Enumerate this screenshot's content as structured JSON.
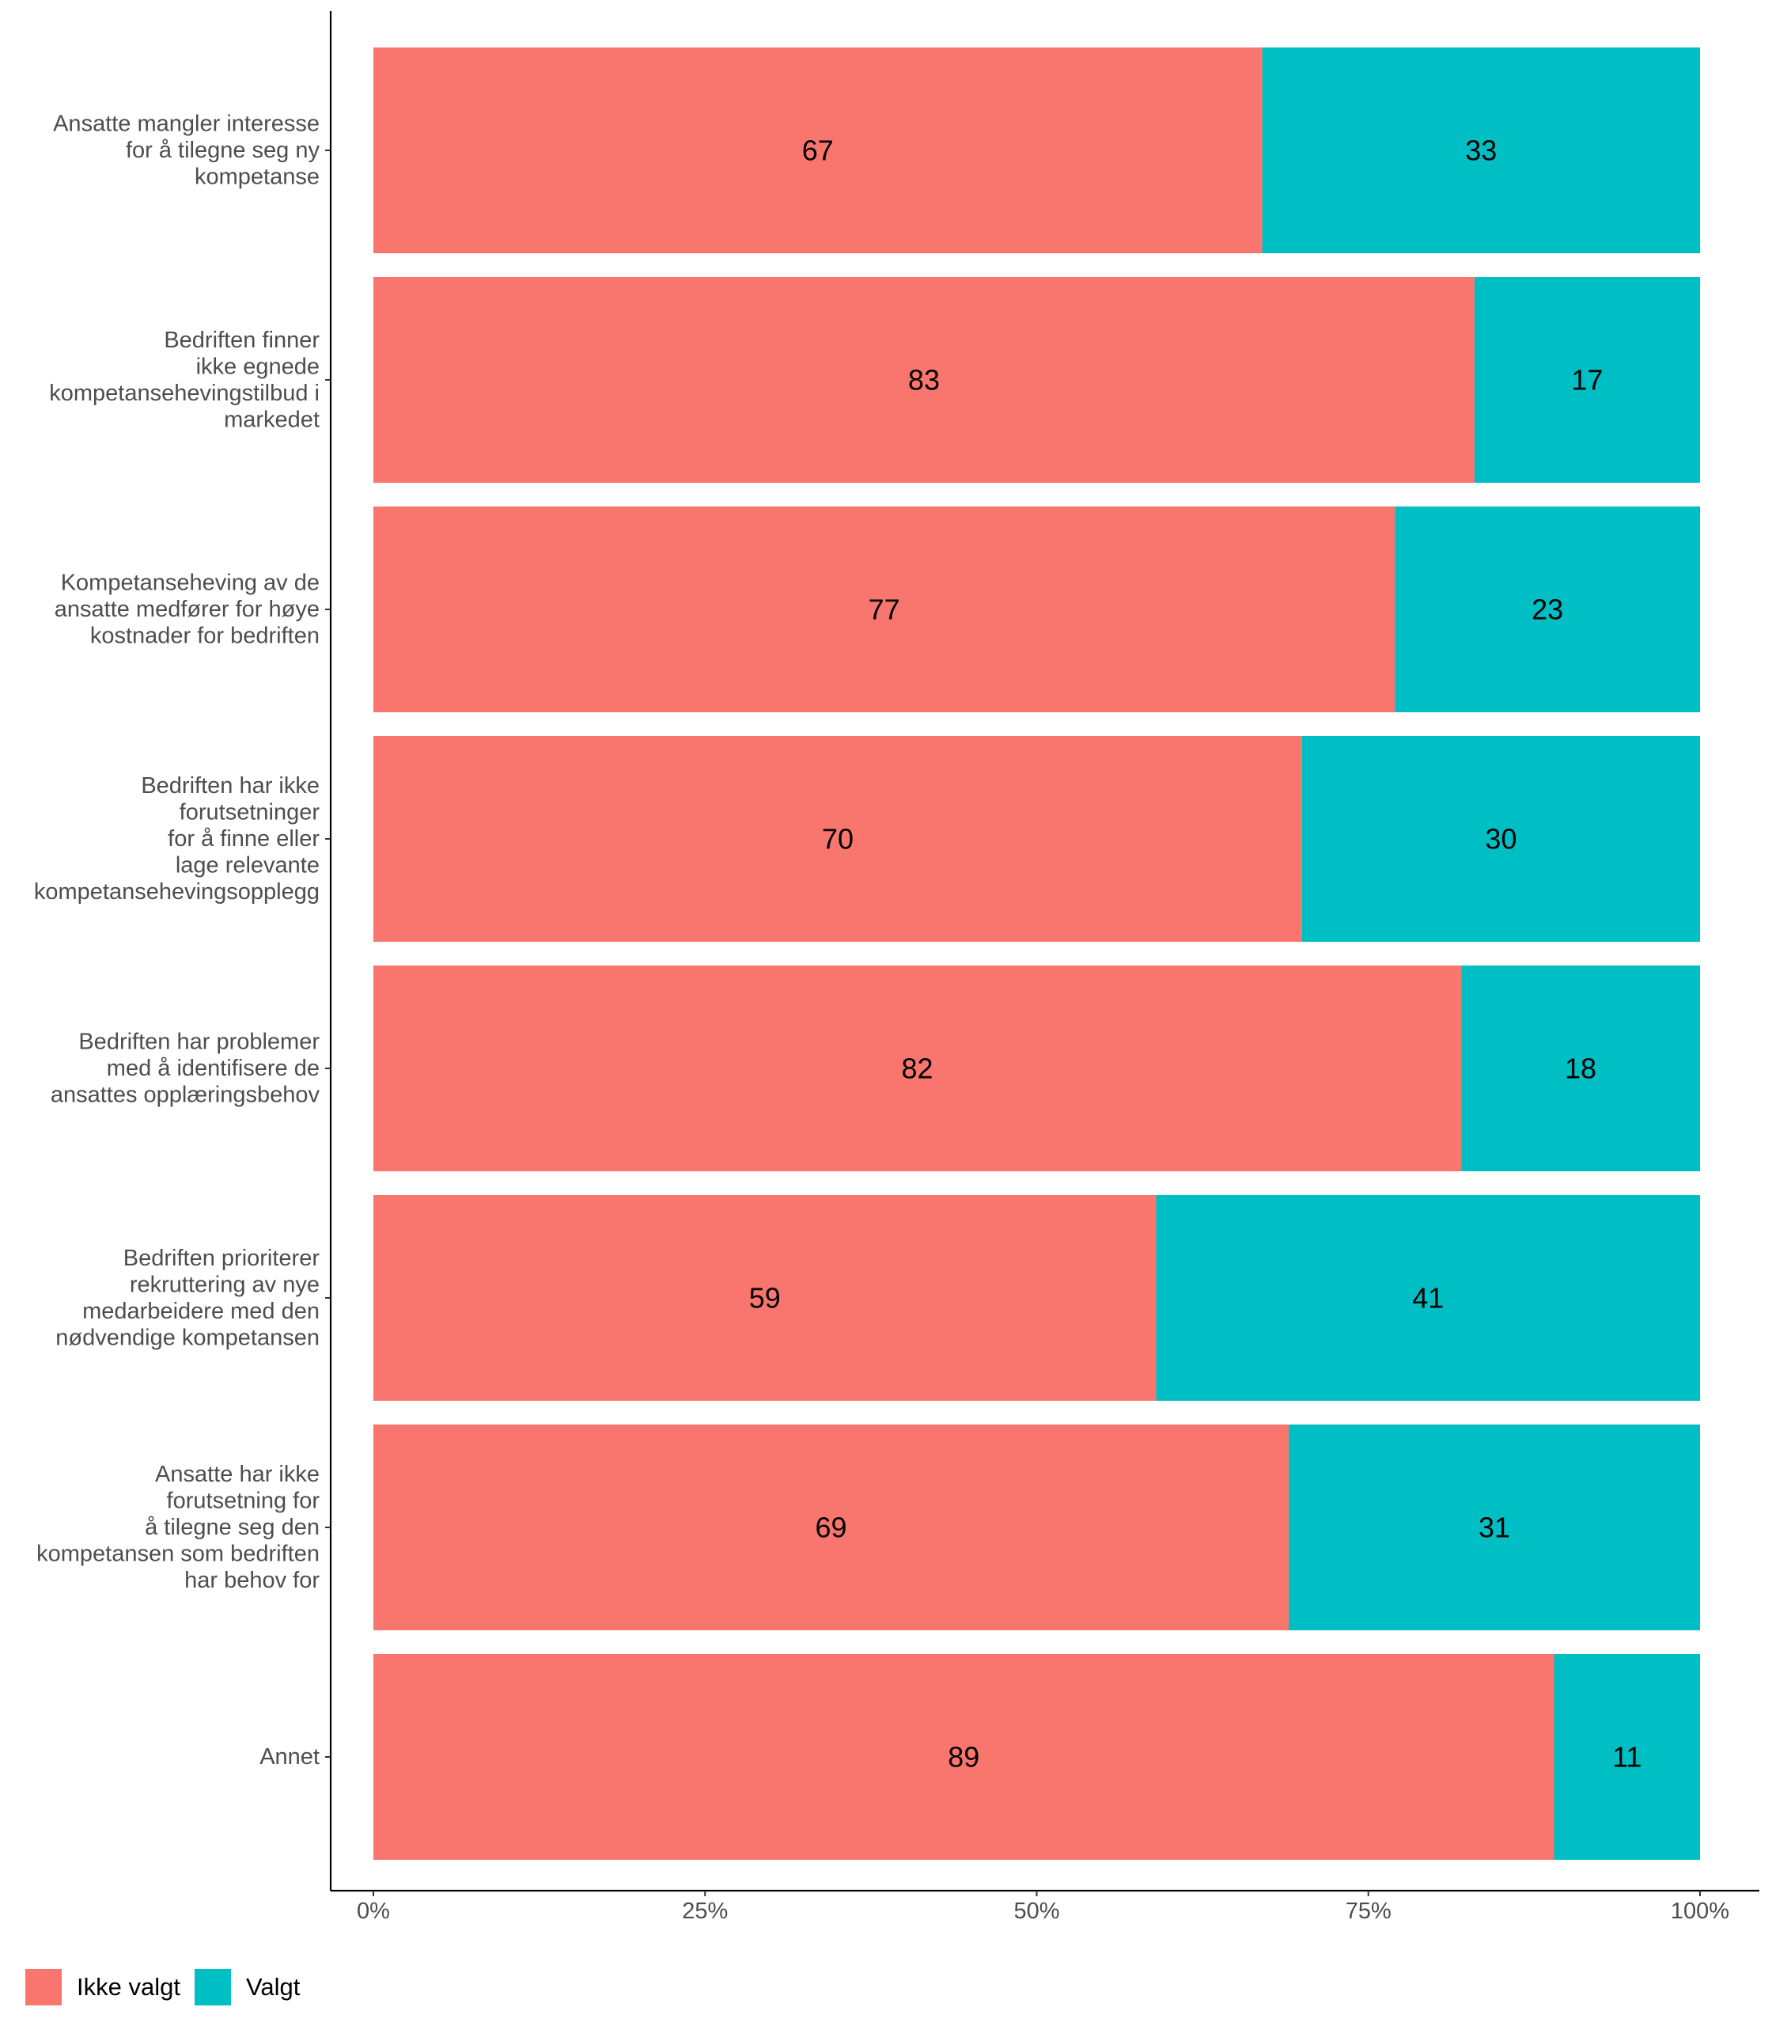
{
  "chart_data": {
    "type": "bar",
    "orientation": "horizontal",
    "stacked": true,
    "categories": [
      [
        "Ansatte mangler interesse",
        "for å tilegne seg ny",
        "kompetanse"
      ],
      [
        "Bedriften finner",
        "ikke egnede",
        "kompetansehevingstilbud i",
        "markedet"
      ],
      [
        "Kompetanseheving av de",
        "ansatte medfører for høye",
        "kostnader for bedriften"
      ],
      [
        "Bedriften har ikke",
        "forutsetninger",
        "for å finne eller",
        "lage relevante",
        "kompetansehevingsopplegg"
      ],
      [
        "Bedriften har problemer",
        "med å identifisere de",
        "ansattes opplæringsbehov"
      ],
      [
        "Bedriften prioriterer",
        "rekruttering av nye",
        "medarbeidere med den",
        "nødvendige kompetansen"
      ],
      [
        "Ansatte har ikke",
        "forutsetning for",
        "å tilegne seg den",
        "kompetansen som bedriften",
        "har behov for"
      ],
      [
        "Annet"
      ]
    ],
    "series": [
      {
        "name": "Ikke valgt",
        "color": "#F8766D",
        "values": [
          67,
          83,
          77,
          70,
          82,
          59,
          69,
          89
        ],
        "labels": [
          "67",
          "83",
          "77",
          "70",
          "82",
          "59",
          "69",
          "89"
        ]
      },
      {
        "name": "Valgt",
        "color": "#00BFC4",
        "values": [
          33,
          17,
          23,
          30,
          18,
          41,
          31,
          11
        ],
        "labels": [
          "33",
          "17",
          "23",
          "30",
          "18",
          "41",
          "31",
          "11"
        ]
      }
    ],
    "xlim": [
      0,
      100
    ],
    "xticks": [
      0,
      25,
      50,
      75,
      100
    ],
    "xtick_labels": [
      "0%",
      "25%",
      "50%",
      "75%",
      "100%"
    ],
    "title": "",
    "xlabel": "",
    "ylabel": "",
    "grid": false,
    "legend_position": "bottom-left"
  },
  "legend": {
    "items": [
      {
        "label": "Ikke valgt",
        "color": "#F8766D"
      },
      {
        "label": "Valgt",
        "color": "#00BFC4"
      }
    ]
  }
}
